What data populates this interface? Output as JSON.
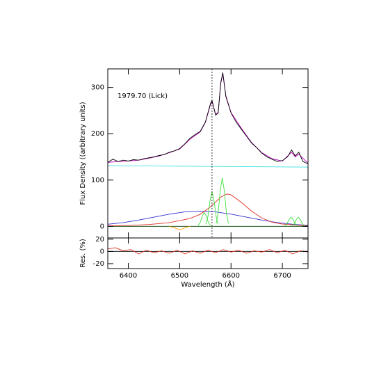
{
  "chart_data": [
    {
      "type": "line",
      "ylabel": "Flux Density ((arbitrary units)",
      "annotation": "1979.70 (Lick)",
      "xlim": [
        6360,
        6750
      ],
      "ylim": [
        -25,
        340
      ],
      "xticks": [
        6400,
        6500,
        6600,
        6700
      ],
      "yticks": [
        0,
        100,
        200,
        300
      ],
      "vline": 6563,
      "series": [
        {
          "color": "#40e0e0",
          "x": [
            6360,
            6750
          ],
          "values": [
            131,
            128
          ]
        },
        {
          "color": "#004000",
          "x": [
            6360,
            6750
          ],
          "values": [
            0,
            0
          ]
        },
        {
          "color": "#3030d0",
          "x": [
            6360,
            6390,
            6420,
            6450,
            6480,
            6510,
            6540,
            6570,
            6600,
            6630,
            6660,
            6690,
            6720,
            6750
          ],
          "values": [
            4.5,
            8.2,
            13.6,
            20,
            26.4,
            31.2,
            33,
            31.2,
            26.4,
            20,
            13.6,
            8.2,
            4.5,
            2.2
          ]
        },
        {
          "color": "#e03020",
          "x": [
            6360,
            6400,
            6440,
            6480,
            6520,
            6540,
            6560,
            6580,
            6592,
            6600,
            6620,
            6640,
            6660,
            6680,
            6700,
            6750
          ],
          "values": [
            1,
            2,
            4,
            8,
            17,
            26,
            42,
            63,
            70,
            68,
            52,
            33,
            18,
            9,
            5,
            1
          ]
        },
        {
          "color": "#ff9900",
          "x": [
            6480,
            6490,
            6500,
            6510,
            6520
          ],
          "values": [
            0,
            -3,
            -8,
            -3,
            0
          ]
        },
        {
          "color": "#40e040",
          "x": [
            6536,
            6540,
            6544,
            6548,
            6552,
            6556,
            6560
          ],
          "values": [
            1.8,
            8.4,
            21.9,
            30,
            21.9,
            8.4,
            1.8
          ]
        },
        {
          "color": "#40e040",
          "x": [
            6551,
            6555,
            6559,
            6563,
            6567,
            6571,
            6575
          ],
          "values": [
            4.5,
            21,
            54.8,
            75,
            54.8,
            21,
            4.5
          ]
        },
        {
          "color": "#40e040",
          "x": [
            6571,
            6575,
            6579,
            6583,
            6587,
            6591,
            6595
          ],
          "values": [
            6.3,
            29.4,
            76.7,
            105,
            76.7,
            29.4,
            6.3
          ]
        },
        {
          "color": "#40e040",
          "x": [
            6705,
            6709,
            6713,
            6717,
            6721,
            6725,
            6729
          ],
          "values": [
            1.2,
            5.6,
            14.6,
            20,
            14.6,
            5.6,
            1.2
          ]
        },
        {
          "color": "#40e040",
          "x": [
            6719,
            6723,
            6727,
            6731,
            6735,
            6739,
            6743
          ],
          "values": [
            1.2,
            5.6,
            14.6,
            20,
            14.6,
            5.6,
            1.2
          ]
        },
        {
          "color": "#c000c0",
          "x": [
            6360,
            6380,
            6400,
            6420,
            6440,
            6460,
            6480,
            6500,
            6520,
            6540,
            6550,
            6560,
            6563,
            6570,
            6575,
            6580,
            6584,
            6590,
            6600,
            6620,
            6640,
            6660,
            6680,
            6700,
            6718,
            6725,
            6732,
            6750
          ],
          "values": [
            138,
            140,
            141,
            143,
            147,
            152,
            159,
            167,
            188,
            204,
            224,
            263,
            270,
            242,
            246,
            308,
            330,
            282,
            246,
            212,
            181,
            159,
            146,
            141,
            160,
            150,
            156,
            136
          ]
        },
        {
          "color": "#000000",
          "x": [
            6360,
            6370,
            6380,
            6390,
            6400,
            6410,
            6420,
            6430,
            6440,
            6450,
            6460,
            6470,
            6480,
            6490,
            6500,
            6510,
            6520,
            6530,
            6540,
            6550,
            6560,
            6563,
            6570,
            6575,
            6580,
            6584,
            6590,
            6600,
            6610,
            6620,
            6630,
            6640,
            6650,
            6660,
            6670,
            6680,
            6690,
            6700,
            6710,
            6718,
            6725,
            6732,
            6740,
            6750
          ],
          "values": [
            138,
            145,
            140,
            143,
            141,
            144,
            143,
            146,
            148,
            150,
            153,
            155,
            160,
            163,
            168,
            178,
            190,
            198,
            205,
            225,
            265,
            272,
            240,
            245,
            310,
            332,
            280,
            245,
            225,
            210,
            195,
            180,
            170,
            158,
            150,
            145,
            140,
            142,
            150,
            165,
            152,
            160,
            140,
            135
          ]
        }
      ]
    },
    {
      "type": "line",
      "ylabel": "Res. (%)",
      "xlabel": "Wavelength (Å)",
      "xlim": [
        6360,
        6750
      ],
      "ylim": [
        -28,
        22
      ],
      "xticks": [
        6400,
        6500,
        6600,
        6700
      ],
      "yticks": [
        -20,
        0,
        20
      ],
      "series": [
        {
          "color": "#000000",
          "x": [
            6360,
            6750
          ],
          "values": [
            0,
            0
          ]
        },
        {
          "color": "#e03020",
          "x": [
            6360,
            6375,
            6390,
            6405,
            6420,
            6435,
            6450,
            6465,
            6480,
            6495,
            6510,
            6525,
            6540,
            6555,
            6570,
            6585,
            6600,
            6615,
            6630,
            6645,
            6660,
            6675,
            6690,
            6705,
            6720,
            6735,
            6750
          ],
          "values": [
            4,
            6,
            1,
            3,
            -4,
            2,
            -2,
            1,
            -3,
            2,
            -4,
            1,
            -3,
            2,
            -2,
            3,
            -1,
            2,
            -3,
            1,
            -1,
            3,
            -2,
            2,
            -4,
            1,
            -1
          ]
        }
      ]
    }
  ]
}
